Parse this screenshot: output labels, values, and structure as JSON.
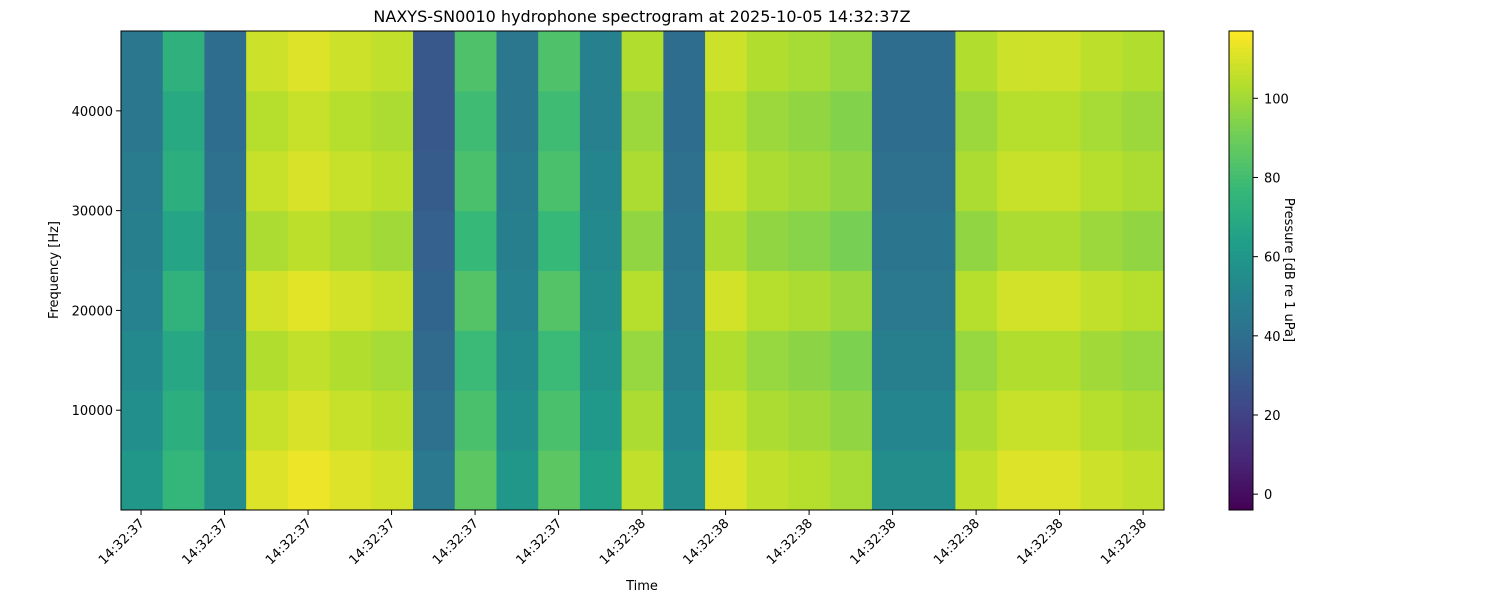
{
  "chart_data": {
    "type": "spectrogram",
    "title": "NAXYS-SN0010 hydrophone spectrogram at 2025-10-05 14:32:37Z",
    "xlabel": "Time",
    "ylabel": "Frequency [Hz]",
    "colorbar_label": "Pressure [dB re 1 uPa]",
    "colormap": "viridis",
    "xlim": [
      37.376,
      38.625
    ],
    "xticks": [
      {
        "value": 37.4,
        "label": "14:32:37"
      },
      {
        "value": 37.5,
        "label": "14:32:37"
      },
      {
        "value": 37.6,
        "label": "14:32:37"
      },
      {
        "value": 37.7,
        "label": "14:32:37"
      },
      {
        "value": 37.8,
        "label": "14:32:37"
      },
      {
        "value": 37.9,
        "label": "14:32:37"
      },
      {
        "value": 38.0,
        "label": "14:32:38"
      },
      {
        "value": 38.1,
        "label": "14:32:38"
      },
      {
        "value": 38.2,
        "label": "14:32:38"
      },
      {
        "value": 38.3,
        "label": "14:32:38"
      },
      {
        "value": 38.4,
        "label": "14:32:38"
      },
      {
        "value": 38.5,
        "label": "14:32:38"
      },
      {
        "value": 38.6,
        "label": "14:32:38"
      }
    ],
    "ylim": [
      0,
      48000
    ],
    "yticks": [
      10000,
      20000,
      30000,
      40000
    ],
    "clim": [
      -4,
      117
    ],
    "cticks": [
      0,
      20,
      40,
      60,
      80,
      100
    ],
    "values": [
      [
        60,
        56,
        53,
        50,
        48,
        46,
        44,
        44
      ],
      [
        76,
        72,
        68,
        74,
        67,
        72,
        69,
        73
      ],
      [
        55,
        51,
        48,
        45,
        43,
        41,
        39,
        39
      ],
      [
        111,
        107,
        103,
        109,
        102,
        107,
        104,
        108
      ],
      [
        114,
        110,
        106,
        112,
        105,
        110,
        107,
        111
      ],
      [
        111,
        107,
        103,
        109,
        102,
        107,
        104,
        108
      ],
      [
        109,
        105,
        101,
        107,
        100,
        105,
        102,
        106
      ],
      [
        45,
        41,
        38,
        35,
        33,
        31,
        29,
        29
      ],
      [
        86,
        82,
        78,
        84,
        77,
        82,
        79,
        83
      ],
      [
        60,
        56,
        53,
        50,
        48,
        46,
        44,
        44
      ],
      [
        86,
        82,
        78,
        84,
        77,
        82,
        79,
        83
      ],
      [
        65,
        61,
        58,
        55,
        53,
        51,
        49,
        49
      ],
      [
        106,
        102,
        98,
        104,
        97,
        102,
        99,
        103
      ],
      [
        55,
        51,
        48,
        45,
        43,
        41,
        39,
        39
      ],
      [
        111,
        107,
        103,
        109,
        102,
        107,
        104,
        108
      ],
      [
        106,
        102,
        98,
        104,
        97,
        102,
        99,
        103
      ],
      [
        104,
        100,
        96,
        102,
        95,
        100,
        97,
        101
      ],
      [
        101,
        97,
        93,
        99,
        92,
        97,
        94,
        98
      ],
      [
        55,
        51,
        48,
        45,
        43,
        41,
        39,
        39
      ],
      [
        55,
        51,
        48,
        45,
        43,
        41,
        39,
        39
      ],
      [
        106,
        102,
        98,
        104,
        97,
        102,
        99,
        103
      ],
      [
        111,
        107,
        103,
        109,
        102,
        107,
        104,
        108
      ],
      [
        111,
        107,
        103,
        109,
        102,
        107,
        104,
        108
      ],
      [
        108,
        104,
        100,
        106,
        99,
        104,
        101,
        105
      ],
      [
        106,
        102,
        98,
        104,
        97,
        102,
        99,
        103
      ]
    ]
  }
}
